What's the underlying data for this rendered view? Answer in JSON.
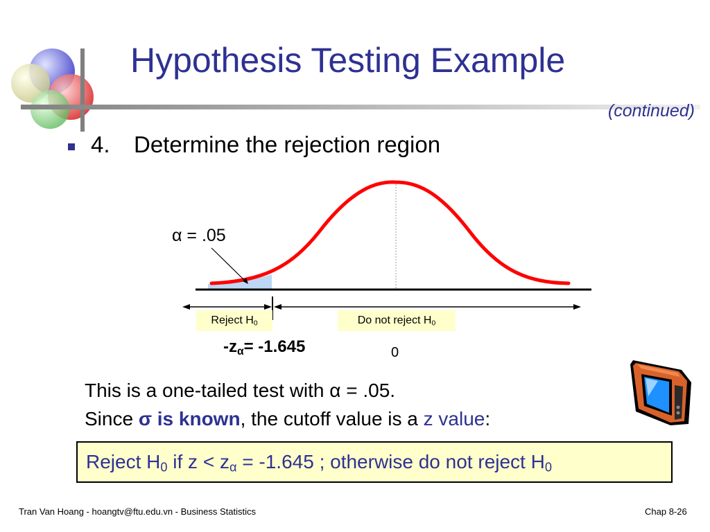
{
  "slide": {
    "title": "Hypothesis Testing Example",
    "continued": "(continued)"
  },
  "bullet": {
    "number": "4.",
    "text": "Determine the rejection region"
  },
  "figure": {
    "alpha_symbol": "α",
    "alpha_value": " = .05",
    "reject_label": "Reject H",
    "reject_sub": "0",
    "do_not_reject_label": "Do not reject H",
    "do_not_reject_sub": "0",
    "critical_prefix": "-z",
    "critical_sub": "α",
    "critical_value": "= -1.645",
    "center_label": "0"
  },
  "text": {
    "line1_prefix": "This is a one-tailed test with ",
    "line1_alpha": "α",
    "line1_suffix": " = .05.",
    "line2_prefix": "Since ",
    "line2_bold": "σ is known",
    "line2_middle": ", the cutoff value is a ",
    "line2_blue": "z value",
    "line2_suffix": ":"
  },
  "decision": {
    "part1": "Reject H",
    "sub1": "0",
    "part2": " if  z < z",
    "sub2": "α",
    "part3": " = -1.645 ;  otherwise do not reject H",
    "sub3": "0"
  },
  "footer": {
    "left": "Tran Van Hoang - hoangtv@ftu.edu.vn - Business Statistics",
    "right": "Chap 8-26"
  },
  "colors": {
    "title_blue": "#2e3192",
    "curve_red": "#ff0000",
    "box_fill": "#ffffcc",
    "tail_fill": "#bdd7f5"
  },
  "icons": [
    "decorative-circles-icon",
    "tv-icon"
  ]
}
